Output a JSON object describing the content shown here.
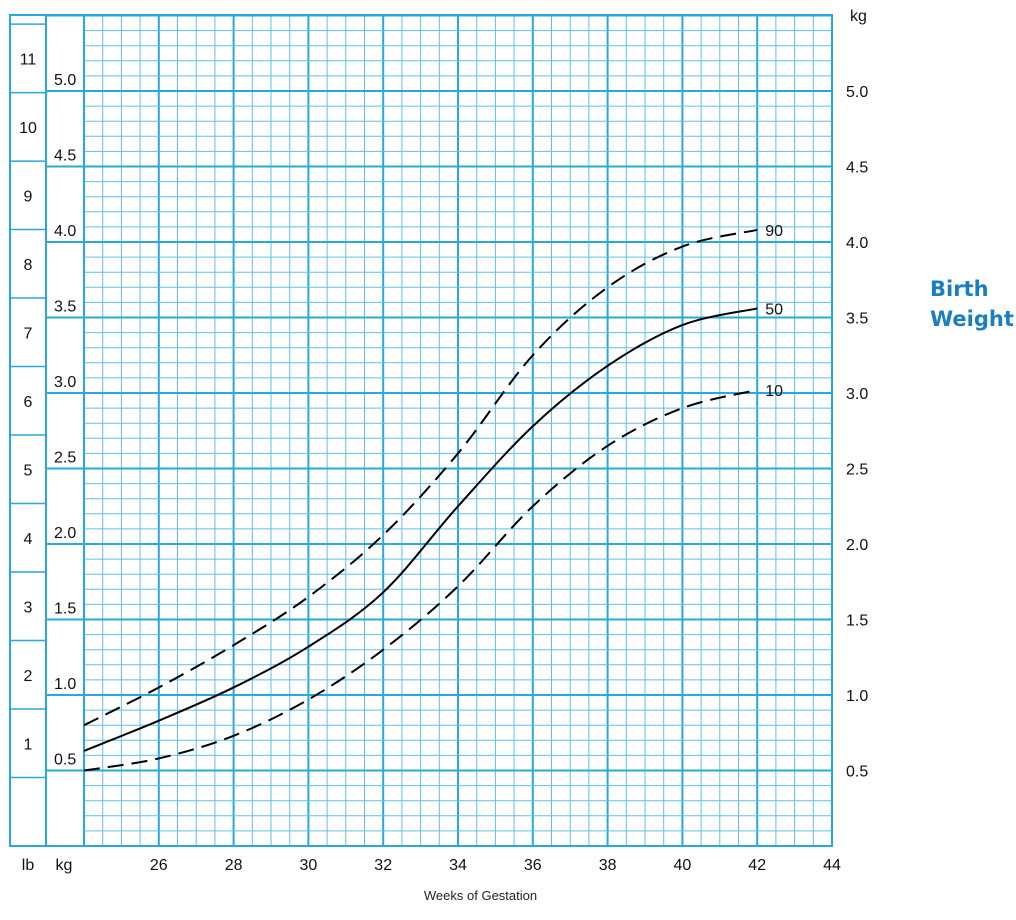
{
  "colors": {
    "grid_major": "#29a8db",
    "grid_minor": "#5fc0e6",
    "curve": "#000000",
    "title": "#1a7fc1"
  },
  "side_title": {
    "line1": "Birth",
    "line2": "Weight"
  },
  "axis_labels": {
    "x": "Weeks of Gestation",
    "lb_column": "lb",
    "kg_column": "kg",
    "right_kg": "kg"
  },
  "chart_data": {
    "type": "line",
    "title": "Birth Weight",
    "xlabel": "Weeks of Gestation",
    "ylabel": "kg",
    "xlim": [
      24,
      44
    ],
    "ylim": [
      0,
      5.5
    ],
    "x_ticks": [
      26,
      28,
      30,
      32,
      34,
      36,
      38,
      40,
      42,
      44
    ],
    "y_ticks_kg": [
      0.5,
      1.0,
      1.5,
      2.0,
      2.5,
      3.0,
      3.5,
      4.0,
      4.5,
      5.0
    ],
    "lb_ticks": [
      1,
      2,
      3,
      4,
      5,
      6,
      7,
      8,
      9,
      10,
      11
    ],
    "grid": true,
    "x": [
      24,
      26,
      28,
      30,
      32,
      34,
      36,
      38,
      40,
      42
    ],
    "series": [
      {
        "name": "90",
        "style": "dashed",
        "values": [
          0.8,
          1.05,
          1.33,
          1.65,
          2.06,
          2.6,
          3.25,
          3.7,
          3.97,
          4.08
        ]
      },
      {
        "name": "50",
        "style": "solid",
        "values": [
          0.63,
          0.83,
          1.05,
          1.32,
          1.68,
          2.25,
          2.78,
          3.18,
          3.45,
          3.56
        ]
      },
      {
        "name": "10",
        "style": "dashed",
        "values": [
          0.5,
          0.58,
          0.73,
          0.97,
          1.3,
          1.72,
          2.25,
          2.65,
          2.9,
          3.02
        ]
      }
    ]
  }
}
